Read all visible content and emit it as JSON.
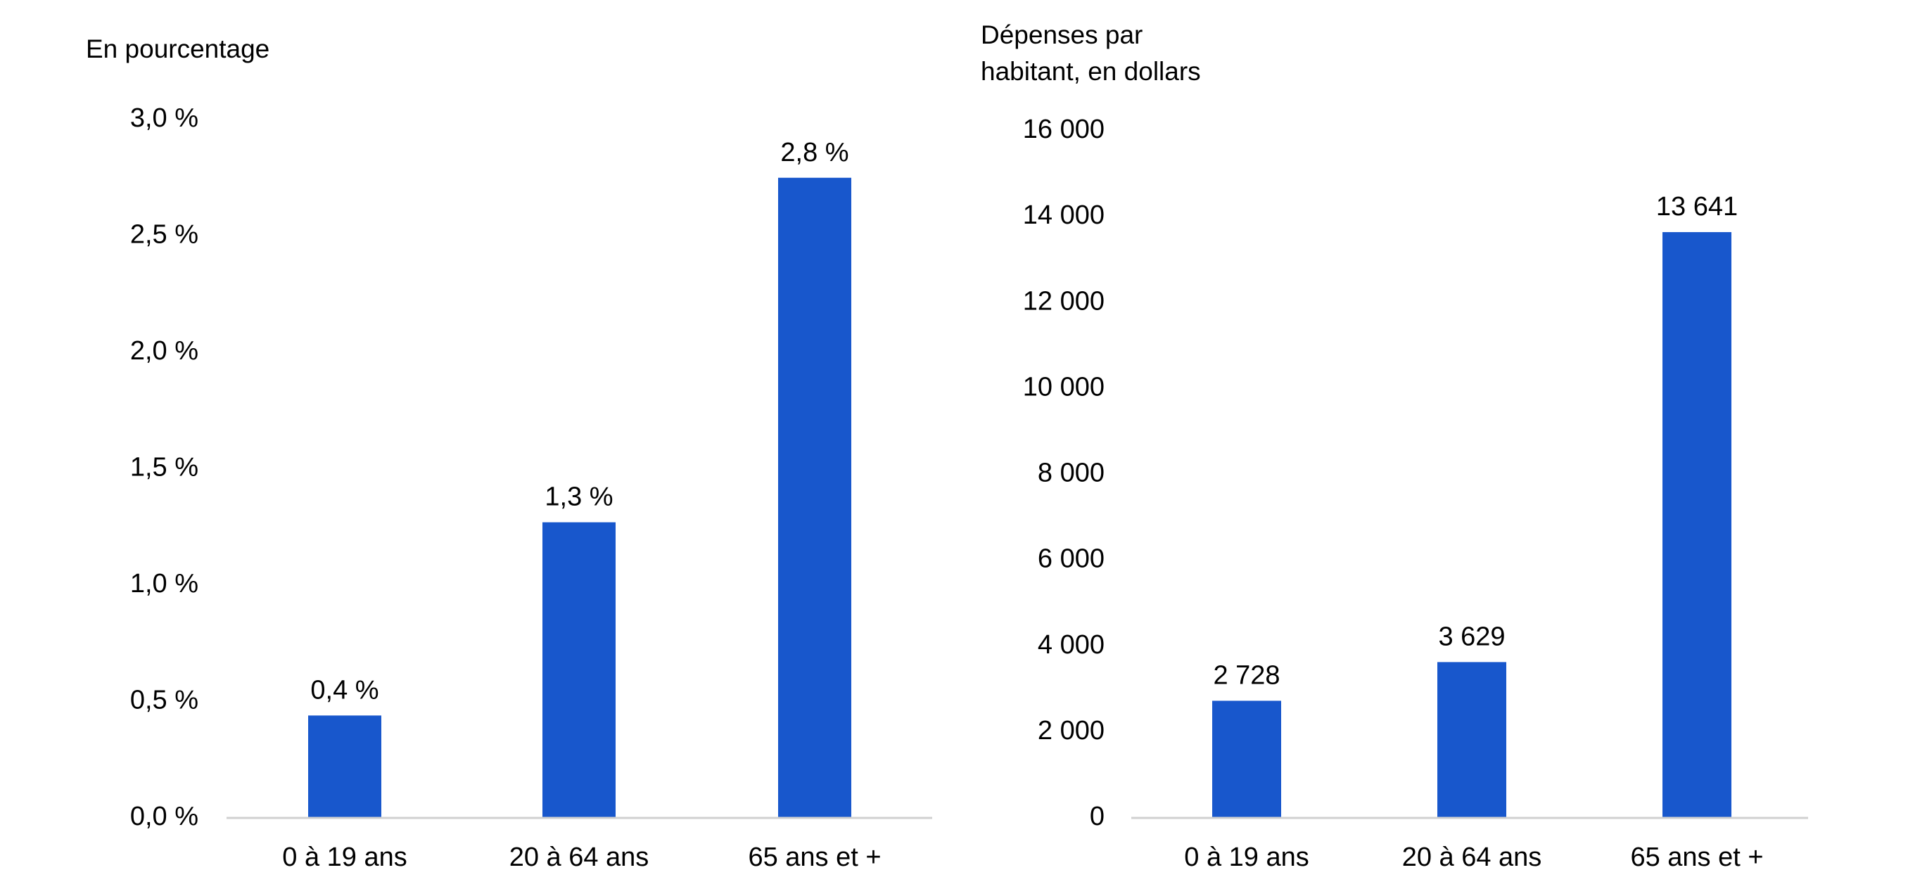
{
  "colors": {
    "bar": "#1857CC",
    "axis": "#D0D0D0"
  },
  "chart_data": [
    {
      "type": "bar",
      "ylabel": "En pourcentage",
      "categories": [
        "0 à 19 ans",
        "20 à 64 ans",
        "65 ans et +"
      ],
      "values": [
        0.44,
        1.27,
        2.75
      ],
      "data_labels": [
        "0,4 %",
        "1,3 %",
        "2,8 %"
      ],
      "ylim": [
        0,
        3.0
      ],
      "y_ticks": [
        0,
        0.5,
        1.0,
        1.5,
        2.0,
        2.5,
        3.0
      ],
      "y_tick_labels": [
        "0,0 %",
        "0,5 %",
        "1,0 %",
        "1,5 %",
        "2,0 %",
        "2,5 %",
        "3,0 %"
      ],
      "grid": false,
      "legend": "none"
    },
    {
      "type": "bar",
      "ylabel": "Dépenses par\nhabitant, en dollars",
      "categories": [
        "0 à 19 ans",
        "20 à 64 ans",
        "65 ans et +"
      ],
      "values": [
        2728,
        3629,
        13641
      ],
      "data_labels": [
        "2 728",
        "3 629",
        "13 641"
      ],
      "ylim": [
        0,
        16000
      ],
      "y_ticks": [
        0,
        2000,
        4000,
        6000,
        8000,
        10000,
        12000,
        14000,
        16000
      ],
      "y_tick_labels": [
        "0",
        "2 000",
        "4 000",
        "6 000",
        "8 000",
        "10 000",
        "12 000",
        "14 000",
        "16 000"
      ],
      "grid": false,
      "legend": "none"
    }
  ]
}
